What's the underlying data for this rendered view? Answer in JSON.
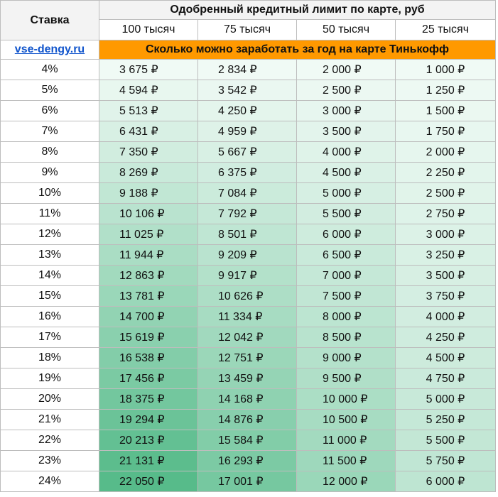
{
  "header": {
    "rate_label": "Ставка",
    "title": "Одобренный кредитный лимит по карте, руб",
    "columns": [
      "100 тысяч",
      "75 тысяч",
      "50 тысяч",
      "25 тысяч"
    ]
  },
  "site_link": "vse-dengy.ru",
  "banner": "Сколько можно заработать за год на карте Тинькофф",
  "rows": [
    {
      "rate": "4%",
      "v": [
        "3 675 ₽",
        "2 834 ₽",
        "2 000 ₽",
        "1 000 ₽"
      ]
    },
    {
      "rate": "5%",
      "v": [
        "4 594 ₽",
        "3 542 ₽",
        "2 500 ₽",
        "1 250 ₽"
      ]
    },
    {
      "rate": "6%",
      "v": [
        "5 513 ₽",
        "4 250 ₽",
        "3 000 ₽",
        "1 500 ₽"
      ]
    },
    {
      "rate": "7%",
      "v": [
        "6 431 ₽",
        "4 959 ₽",
        "3 500 ₽",
        "1 750 ₽"
      ]
    },
    {
      "rate": "8%",
      "v": [
        "7 350 ₽",
        "5 667 ₽",
        "4 000 ₽",
        "2 000 ₽"
      ]
    },
    {
      "rate": "9%",
      "v": [
        "8 269 ₽",
        "6 375 ₽",
        "4 500 ₽",
        "2 250 ₽"
      ]
    },
    {
      "rate": "10%",
      "v": [
        "9 188 ₽",
        "7 084 ₽",
        "5 000 ₽",
        "2 500 ₽"
      ]
    },
    {
      "rate": "11%",
      "v": [
        "10 106 ₽",
        "7 792 ₽",
        "5 500 ₽",
        "2 750 ₽"
      ]
    },
    {
      "rate": "12%",
      "v": [
        "11 025 ₽",
        "8 501 ₽",
        "6 000 ₽",
        "3 000 ₽"
      ]
    },
    {
      "rate": "13%",
      "v": [
        "11 944 ₽",
        "9 209 ₽",
        "6 500 ₽",
        "3 250 ₽"
      ]
    },
    {
      "rate": "14%",
      "v": [
        "12 863 ₽",
        "9 917 ₽",
        "7 000 ₽",
        "3 500 ₽"
      ]
    },
    {
      "rate": "15%",
      "v": [
        "13 781 ₽",
        "10 626 ₽",
        "7 500 ₽",
        "3 750 ₽"
      ]
    },
    {
      "rate": "16%",
      "v": [
        "14 700 ₽",
        "11 334 ₽",
        "8 000 ₽",
        "4 000 ₽"
      ]
    },
    {
      "rate": "17%",
      "v": [
        "15 619 ₽",
        "12 042 ₽",
        "8 500 ₽",
        "4 250 ₽"
      ]
    },
    {
      "rate": "18%",
      "v": [
        "16 538 ₽",
        "12 751 ₽",
        "9 000 ₽",
        "4 500 ₽"
      ]
    },
    {
      "rate": "19%",
      "v": [
        "17 456 ₽",
        "13 459 ₽",
        "9 500 ₽",
        "4 750 ₽"
      ]
    },
    {
      "rate": "20%",
      "v": [
        "18 375 ₽",
        "14 168 ₽",
        "10 000 ₽",
        "5 000 ₽"
      ]
    },
    {
      "rate": "21%",
      "v": [
        "19 294 ₽",
        "14 876 ₽",
        "10 500 ₽",
        "5 250 ₽"
      ]
    },
    {
      "rate": "22%",
      "v": [
        "20 213 ₽",
        "15 584 ₽",
        "11 000 ₽",
        "5 500 ₽"
      ]
    },
    {
      "rate": "23%",
      "v": [
        "21 131 ₽",
        "16 293 ₽",
        "11 500 ₽",
        "5 750 ₽"
      ]
    },
    {
      "rate": "24%",
      "v": [
        "22 050 ₽",
        "17 001 ₽",
        "12 000 ₽",
        "6 000 ₽"
      ]
    }
  ],
  "colors": {
    "scale_low": "#f3fbf7",
    "scale_high": "#57bb8a",
    "banner_bg": "#ff9900",
    "link": "#1155cc"
  }
}
